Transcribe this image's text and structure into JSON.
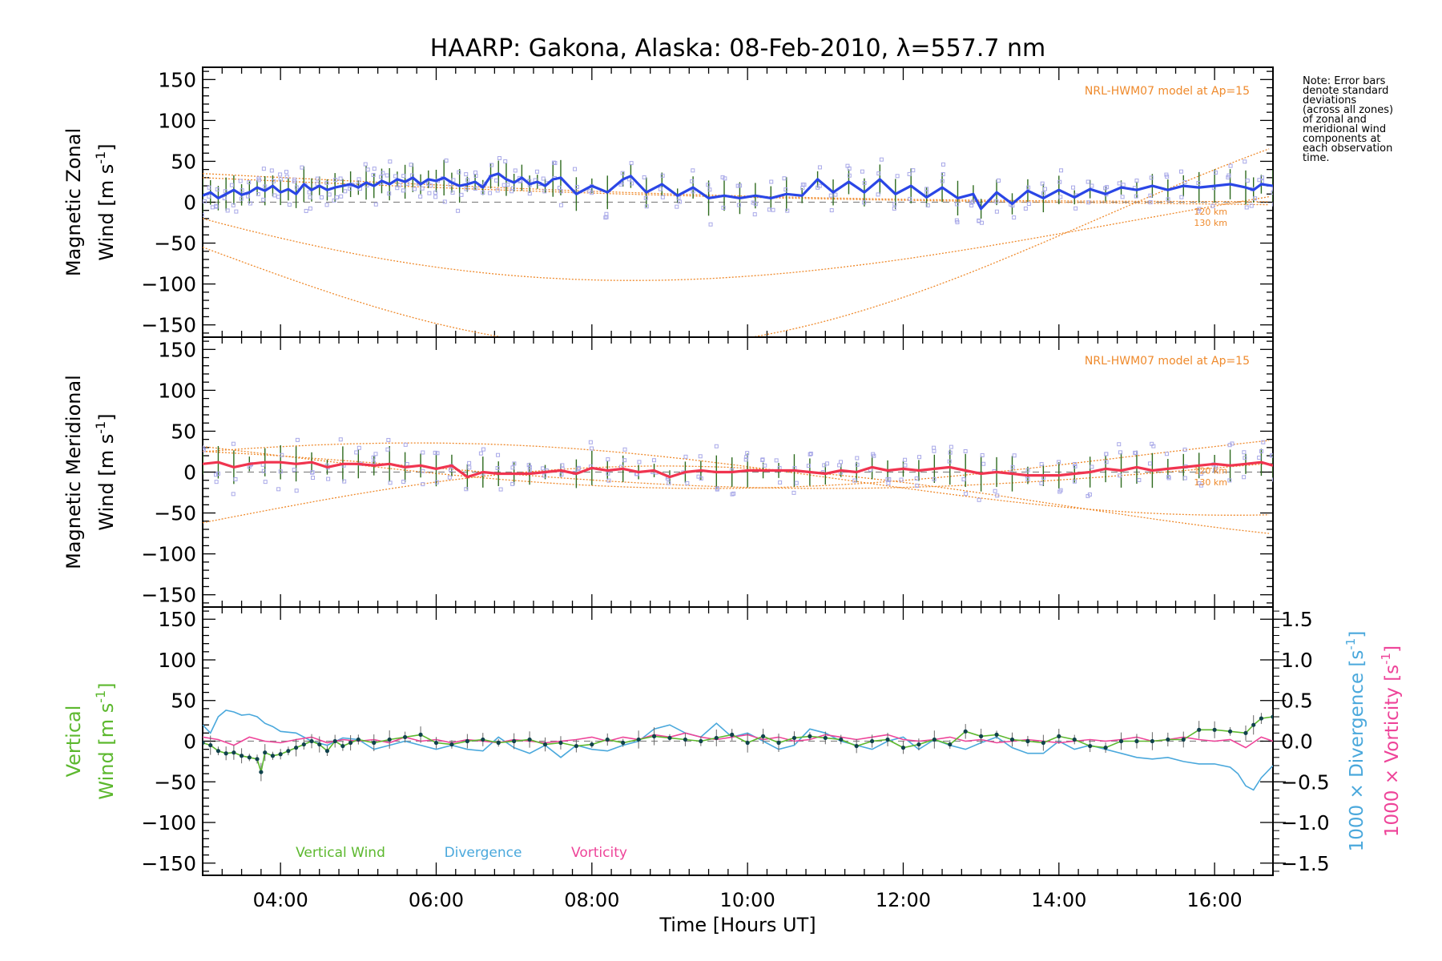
{
  "chart_data": {
    "type": "line",
    "title": "HAARP: Gakona,  Alaska: 08-Feb-2010, λ=557.7 nm",
    "xlabel": "Time [Hours UT]",
    "x_range_hours": [
      3.0,
      16.75
    ],
    "x_ticks": [
      {
        "v": 4,
        "label": "04:00"
      },
      {
        "v": 6,
        "label": "06:00"
      },
      {
        "v": 8,
        "label": "08:00"
      },
      {
        "v": 10,
        "label": "10:00"
      },
      {
        "v": 12,
        "label": "12:00"
      },
      {
        "v": 14,
        "label": "14:00"
      },
      {
        "v": 16,
        "label": "16:00"
      }
    ],
    "y_range": [
      -165,
      165
    ],
    "y_ticks": [
      150,
      100,
      50,
      0,
      -50,
      -100,
      -150
    ],
    "y_tick_labels": [
      "150",
      "100",
      "50",
      "0",
      "−50",
      "−100",
      "−150"
    ],
    "colors": {
      "zonal": "#2a46e6",
      "meridional": "#f0344f",
      "vertical": "#5cb82e",
      "divergence": "#4aa8dc",
      "vorticity": "#ee4499",
      "model": "#ef8a2c",
      "errorbar": "#2e6b1e",
      "points": "#a8a8e8",
      "vertical_points": "#10424c"
    },
    "panels": [
      {
        "id": "zonal",
        "ylabel_line1": "Magnetic Zonal",
        "ylabel_line2": "Wind [m s",
        "ylabel_sup": "-1",
        "ylabel_end": "]",
        "model_note": "NRL-HWM07 model at Ap=15",
        "model_levels": [
          "120 km",
          "130 km"
        ],
        "series": {
          "name": "Magnetic Zonal Wind",
          "x": [
            3.0,
            3.1,
            3.2,
            3.3,
            3.4,
            3.5,
            3.6,
            3.7,
            3.8,
            3.9,
            4.0,
            4.1,
            4.2,
            4.3,
            4.4,
            4.5,
            4.6,
            4.7,
            4.8,
            4.9,
            5.0,
            5.1,
            5.2,
            5.3,
            5.4,
            5.5,
            5.6,
            5.7,
            5.8,
            5.9,
            6.0,
            6.1,
            6.2,
            6.3,
            6.4,
            6.5,
            6.6,
            6.7,
            6.8,
            6.9,
            7.0,
            7.1,
            7.2,
            7.3,
            7.4,
            7.5,
            7.6,
            7.8,
            8.0,
            8.2,
            8.4,
            8.5,
            8.7,
            8.9,
            9.1,
            9.3,
            9.5,
            9.7,
            9.9,
            10.1,
            10.3,
            10.5,
            10.7,
            10.9,
            11.1,
            11.3,
            11.5,
            11.7,
            11.9,
            12.1,
            12.3,
            12.5,
            12.7,
            12.9,
            13.0,
            13.2,
            13.4,
            13.6,
            13.8,
            14.0,
            14.2,
            14.4,
            14.6,
            14.8,
            15.0,
            15.2,
            15.4,
            15.6,
            15.8,
            16.0,
            16.2,
            16.4,
            16.5,
            16.6,
            16.75
          ],
          "y": [
            8,
            12,
            5,
            10,
            15,
            9,
            12,
            18,
            14,
            20,
            12,
            16,
            10,
            22,
            15,
            20,
            15,
            18,
            20,
            22,
            18,
            24,
            20,
            26,
            22,
            28,
            25,
            30,
            22,
            28,
            26,
            30,
            24,
            20,
            22,
            25,
            18,
            32,
            35,
            28,
            24,
            30,
            22,
            25,
            20,
            28,
            30,
            10,
            20,
            12,
            28,
            32,
            12,
            22,
            8,
            18,
            5,
            8,
            5,
            8,
            5,
            10,
            8,
            28,
            12,
            25,
            12,
            28,
            10,
            20,
            6,
            18,
            5,
            10,
            -8,
            12,
            -2,
            14,
            5,
            15,
            6,
            16,
            10,
            18,
            15,
            20,
            15,
            20,
            18,
            20,
            22,
            18,
            15,
            22,
            20
          ]
        }
      },
      {
        "id": "meridional",
        "ylabel_line1": "Magnetic Meridional",
        "ylabel_line2": "Wind [m s",
        "ylabel_sup": "-1",
        "ylabel_end": "]",
        "model_note": "NRL-HWM07 model at Ap=15",
        "model_levels": [
          "120 km",
          "130 km"
        ],
        "series": {
          "name": "Magnetic Meridional Wind",
          "x": [
            3.0,
            3.2,
            3.4,
            3.6,
            3.8,
            4.0,
            4.2,
            4.4,
            4.6,
            4.8,
            5.0,
            5.2,
            5.4,
            5.6,
            5.8,
            6.0,
            6.2,
            6.4,
            6.6,
            6.8,
            7.0,
            7.2,
            7.4,
            7.6,
            7.8,
            8.0,
            8.2,
            8.4,
            8.6,
            8.8,
            9.0,
            9.2,
            9.4,
            9.6,
            9.8,
            10.0,
            10.2,
            10.4,
            10.6,
            10.8,
            11.0,
            11.2,
            11.4,
            11.6,
            11.8,
            12.0,
            12.2,
            12.4,
            12.6,
            12.8,
            13.0,
            13.2,
            13.4,
            13.6,
            13.8,
            14.0,
            14.2,
            14.4,
            14.6,
            14.8,
            15.0,
            15.2,
            15.4,
            15.6,
            15.8,
            16.0,
            16.2,
            16.4,
            16.6,
            16.75
          ],
          "y": [
            10,
            12,
            6,
            10,
            12,
            12,
            10,
            12,
            6,
            10,
            10,
            8,
            10,
            6,
            8,
            4,
            8,
            -6,
            0,
            -2,
            -2,
            -2,
            0,
            2,
            -2,
            5,
            2,
            4,
            0,
            2,
            -6,
            0,
            2,
            0,
            0,
            2,
            2,
            2,
            2,
            0,
            -2,
            2,
            0,
            6,
            2,
            4,
            2,
            4,
            6,
            2,
            -2,
            0,
            -2,
            -4,
            -4,
            -4,
            -2,
            0,
            4,
            2,
            6,
            2,
            4,
            6,
            8,
            10,
            8,
            10,
            12,
            8
          ]
        }
      },
      {
        "id": "vertical",
        "ylabel_line1": "Vertical",
        "ylabel_line2": "Wind [m s",
        "ylabel_sup": "-1",
        "ylabel_end": "]",
        "right_axis": {
          "range": [
            -1.65,
            1.65
          ],
          "ticks": [
            1.5,
            1.0,
            0.5,
            0.0,
            -0.5,
            -1.0,
            -1.5
          ],
          "tick_labels": [
            "1.5",
            "1.0",
            "0.5",
            "0.0",
            "−0.5",
            "−1.0",
            "−1.5"
          ],
          "divergence_label": "1000 × Divergence [s",
          "vorticity_label": "1000 × Vorticity [s",
          "sup": "-1",
          "end": "]"
        },
        "legend": [
          "Vertical Wind",
          "Divergence",
          "Vorticity"
        ],
        "series": [
          {
            "name": "Vertical Wind",
            "x": [
              3.0,
              3.1,
              3.2,
              3.3,
              3.4,
              3.5,
              3.6,
              3.7,
              3.75,
              3.8,
              3.9,
              4.0,
              4.1,
              4.2,
              4.3,
              4.4,
              4.5,
              4.6,
              4.7,
              4.8,
              4.9,
              5.0,
              5.2,
              5.4,
              5.6,
              5.8,
              6.0,
              6.2,
              6.4,
              6.6,
              6.8,
              7.0,
              7.2,
              7.4,
              7.6,
              7.8,
              8.0,
              8.2,
              8.4,
              8.6,
              8.8,
              9.0,
              9.2,
              9.4,
              9.6,
              9.8,
              10.0,
              10.2,
              10.4,
              10.6,
              10.8,
              11.0,
              11.2,
              11.4,
              11.6,
              11.8,
              12.0,
              12.2,
              12.4,
              12.6,
              12.8,
              13.0,
              13.2,
              13.4,
              13.6,
              13.8,
              14.0,
              14.2,
              14.4,
              14.6,
              14.8,
              15.0,
              15.2,
              15.4,
              15.6,
              15.8,
              16.0,
              16.2,
              16.4,
              16.5,
              16.6,
              16.75
            ],
            "y": [
              -2,
              -5,
              -12,
              -15,
              -14,
              -18,
              -20,
              -22,
              -38,
              -14,
              -18,
              -16,
              -12,
              -8,
              -4,
              0,
              -4,
              -12,
              0,
              -6,
              -2,
              2,
              -2,
              2,
              5,
              8,
              -2,
              -4,
              0,
              2,
              -2,
              0,
              2,
              -4,
              -2,
              -6,
              -4,
              2,
              -2,
              2,
              6,
              4,
              2,
              0,
              4,
              8,
              -2,
              6,
              -2,
              4,
              6,
              4,
              2,
              -6,
              0,
              2,
              -8,
              -4,
              2,
              -4,
              12,
              6,
              8,
              2,
              0,
              -2,
              6,
              2,
              -6,
              -8,
              0,
              0,
              0,
              2,
              2,
              14,
              14,
              12,
              10,
              20,
              28,
              30
            ]
          },
          {
            "name": "Divergence",
            "x": [
              3.0,
              3.1,
              3.2,
              3.3,
              3.4,
              3.5,
              3.6,
              3.7,
              3.8,
              3.9,
              4.0,
              4.2,
              4.4,
              4.6,
              4.8,
              5.0,
              5.2,
              5.4,
              5.6,
              5.8,
              6.0,
              6.2,
              6.4,
              6.6,
              6.8,
              7.0,
              7.2,
              7.4,
              7.6,
              7.8,
              8.0,
              8.2,
              8.4,
              8.6,
              8.8,
              9.0,
              9.2,
              9.4,
              9.6,
              9.8,
              10.0,
              10.2,
              10.4,
              10.6,
              10.8,
              11.0,
              11.2,
              11.4,
              11.6,
              11.8,
              12.0,
              12.2,
              12.4,
              12.6,
              12.8,
              13.0,
              13.2,
              13.4,
              13.6,
              13.8,
              14.0,
              14.2,
              14.4,
              14.6,
              14.8,
              15.0,
              15.2,
              15.4,
              15.6,
              15.8,
              16.0,
              16.2,
              16.3,
              16.4,
              16.5,
              16.6,
              16.75
            ],
            "y": [
              0.2,
              0.1,
              0.3,
              0.38,
              0.36,
              0.32,
              0.33,
              0.3,
              0.22,
              0.18,
              0.12,
              0.1,
              0.0,
              -0.05,
              0.04,
              0.02,
              -0.1,
              -0.05,
              0.0,
              -0.05,
              -0.1,
              -0.05,
              -0.1,
              -0.12,
              0.05,
              -0.08,
              -0.15,
              -0.05,
              -0.2,
              -0.05,
              -0.1,
              -0.12,
              -0.05,
              0.0,
              0.15,
              0.2,
              0.1,
              0.05,
              0.22,
              0.05,
              0.1,
              0.0,
              -0.1,
              -0.05,
              0.15,
              0.1,
              0.0,
              -0.05,
              -0.1,
              0.0,
              0.05,
              -0.1,
              0.02,
              -0.05,
              -0.1,
              -0.02,
              0.05,
              -0.08,
              -0.15,
              -0.15,
              0.0,
              -0.1,
              -0.05,
              -0.1,
              -0.15,
              -0.2,
              -0.22,
              -0.2,
              -0.25,
              -0.28,
              -0.28,
              -0.32,
              -0.4,
              -0.55,
              -0.6,
              -0.45,
              -0.3
            ]
          },
          {
            "name": "Vorticity",
            "x": [
              3.0,
              3.2,
              3.4,
              3.6,
              3.8,
              4.0,
              4.2,
              4.4,
              4.6,
              4.8,
              5.0,
              5.2,
              5.4,
              5.6,
              5.8,
              6.0,
              6.2,
              6.4,
              6.6,
              6.8,
              7.0,
              7.2,
              7.4,
              7.6,
              7.8,
              8.0,
              8.2,
              8.4,
              8.6,
              8.8,
              9.0,
              9.2,
              9.4,
              9.6,
              9.8,
              10.0,
              10.2,
              10.4,
              10.6,
              10.8,
              11.0,
              11.2,
              11.4,
              11.6,
              11.8,
              12.0,
              12.2,
              12.4,
              12.6,
              12.8,
              13.0,
              13.2,
              13.4,
              13.6,
              13.8,
              14.0,
              14.2,
              14.4,
              14.6,
              14.8,
              15.0,
              15.2,
              15.4,
              15.6,
              15.8,
              16.0,
              16.2,
              16.4,
              16.6,
              16.75
            ],
            "y": [
              0.05,
              0.02,
              -0.05,
              0.05,
              0.0,
              -0.02,
              0.02,
              0.05,
              -0.02,
              0.02,
              0.0,
              0.02,
              -0.02,
              0.05,
              0.0,
              0.02,
              -0.02,
              0.02,
              0.0,
              -0.02,
              0.02,
              0.0,
              -0.02,
              0.0,
              0.02,
              0.05,
              0.0,
              0.05,
              0.02,
              0.08,
              0.05,
              0.1,
              0.05,
              0.02,
              0.05,
              0.08,
              0.02,
              0.05,
              0.0,
              0.02,
              0.08,
              0.05,
              0.02,
              0.05,
              0.08,
              0.02,
              0.0,
              0.02,
              0.05,
              0.0,
              0.02,
              -0.02,
              0.0,
              0.02,
              0.0,
              -0.02,
              0.0,
              0.02,
              0.0,
              0.02,
              0.05,
              0.0,
              0.02,
              0.05,
              0.02,
              0.0,
              0.02,
              -0.08,
              0.05,
              0.0
            ]
          }
        ]
      }
    ],
    "note_lines": [
      "Note: Error bars",
      "denote standard",
      "deviations",
      "(across all zones)",
      "of zonal and",
      "meridional wind",
      "components at",
      "each observation",
      "time."
    ]
  }
}
